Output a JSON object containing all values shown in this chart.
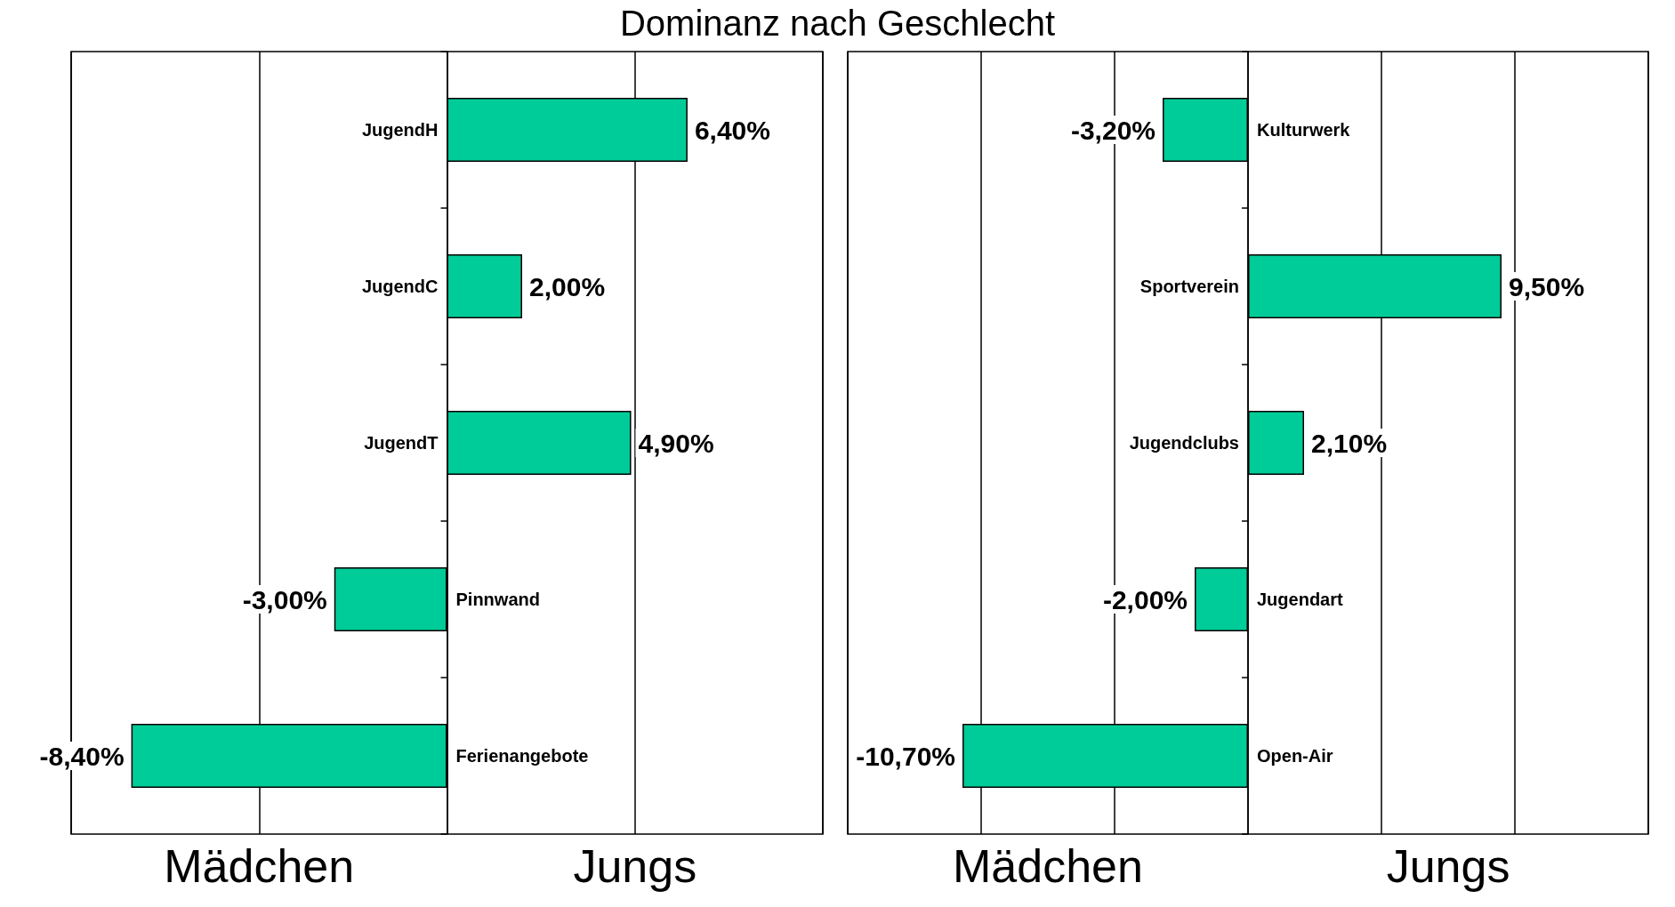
{
  "chart_data": [
    {
      "type": "bar",
      "orientation": "horizontal",
      "title": "Dominanz nach Geschlecht",
      "categories": [
        "JugendH",
        "JugendC",
        "JugendT",
        "Pinnwand",
        "Ferienangebote"
      ],
      "values": [
        6.4,
        2.0,
        4.9,
        -3.0,
        -8.4
      ],
      "value_labels": [
        "6,40%",
        "2,00%",
        "4,90%",
        "-3,00%",
        "-8,40%"
      ],
      "color": "#00cc99",
      "xlim": [
        -10,
        10
      ],
      "xticks": [
        {
          "value": -10,
          "label": null
        },
        {
          "value": -5,
          "label": null
        },
        {
          "value": 0,
          "label": null
        },
        {
          "value": 5,
          "label": null
        },
        {
          "value": 10,
          "label": null
        }
      ],
      "grid": "x",
      "tick_labels": "y",
      "annotations": [
        "Mädchen",
        "Jungs"
      ]
    },
    {
      "type": "bar",
      "orientation": "horizontal",
      "categories": [
        "Kulturwerk",
        "Sportverein",
        "Jugendclubs",
        "Jugendart",
        "Open-Air"
      ],
      "values": [
        -3.2,
        9.5,
        2.1,
        -2.0,
        -10.7
      ],
      "value_labels": [
        "-3,20%",
        "9,50%",
        "2,10%",
        "-2,00%",
        "-10,70%"
      ],
      "color": "#00cc99",
      "xlim": [
        -15,
        15
      ],
      "xticks": [
        {
          "value": -15,
          "label": null
        },
        {
          "value": -10,
          "label": null
        },
        {
          "value": -5,
          "label": null
        },
        {
          "value": 0,
          "label": null
        },
        {
          "value": 5,
          "label": null
        },
        {
          "value": 10,
          "label": null
        },
        {
          "value": 15,
          "label": null
        }
      ],
      "grid": "x",
      "tick_labels": "y",
      "annotations": [
        "Mädchen",
        "Jungs"
      ]
    }
  ]
}
